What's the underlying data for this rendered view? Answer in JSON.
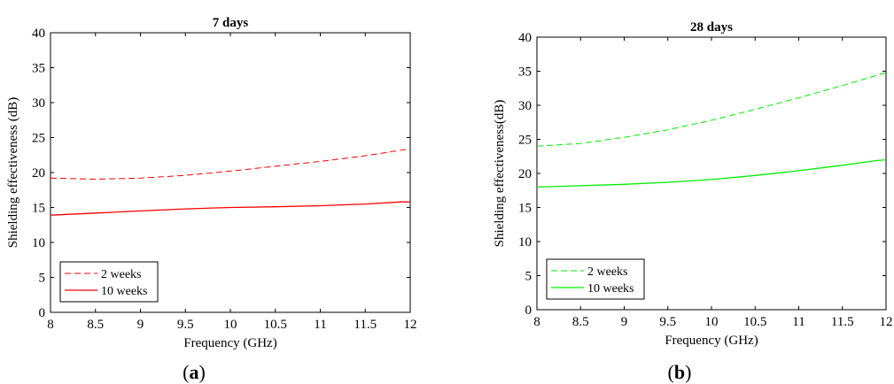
{
  "chart_data": [
    {
      "type": "line",
      "title": "7 days",
      "xlabel": "Frequency (GHz)",
      "ylabel": "Shielding effectiveness (dB)",
      "xlim": [
        8,
        12
      ],
      "ylim": [
        0,
        40
      ],
      "xticks": [
        "8",
        "8.5",
        "9",
        "9.5",
        "10",
        "10.5",
        "11",
        "11.5",
        "12"
      ],
      "yticks": [
        "0",
        "5",
        "10",
        "15",
        "20",
        "25",
        "30",
        "35",
        "40"
      ],
      "legend_position": "bottom-left",
      "grid": false,
      "caption_letter": "a",
      "series": [
        {
          "name": "2 weeks",
          "color": "#ff0000",
          "style": "dashed",
          "x": [
            8.0,
            8.5,
            9.0,
            9.5,
            10.0,
            10.5,
            11.0,
            11.5,
            12.0
          ],
          "y": [
            19.2,
            19.05,
            19.2,
            19.6,
            20.2,
            20.9,
            21.6,
            22.4,
            23.4
          ]
        },
        {
          "name": "10 weeks",
          "color": "#ff0000",
          "style": "solid",
          "x": [
            8.0,
            8.5,
            9.0,
            9.5,
            10.0,
            10.5,
            11.0,
            11.5,
            11.9,
            12.0
          ],
          "y": [
            13.9,
            14.2,
            14.5,
            14.8,
            15.0,
            15.1,
            15.25,
            15.5,
            15.8,
            15.8
          ]
        }
      ]
    },
    {
      "type": "line",
      "title": "28 days",
      "xlabel": "Frequency (GHz)",
      "ylabel": "Shielding effectiveness(dB)",
      "xlim": [
        8,
        12
      ],
      "ylim": [
        0,
        40
      ],
      "xticks": [
        "8",
        "8.5",
        "9",
        "9.5",
        "10",
        "10.5",
        "11",
        "11.5",
        "12"
      ],
      "yticks": [
        "0",
        "5",
        "10",
        "15",
        "20",
        "25",
        "30",
        "35",
        "40"
      ],
      "legend_position": "bottom-left",
      "grid": false,
      "caption_letter": "b",
      "series": [
        {
          "name": "2 weeks",
          "color": "#00ee00",
          "style": "dashed",
          "x": [
            8.0,
            8.5,
            9.0,
            9.5,
            10.0,
            10.5,
            11.0,
            11.5,
            12.0
          ],
          "y": [
            24.0,
            24.4,
            25.3,
            26.4,
            27.8,
            29.4,
            31.1,
            32.9,
            34.8
          ]
        },
        {
          "name": "10 weeks",
          "color": "#00ee00",
          "style": "solid",
          "x": [
            8.0,
            8.5,
            9.0,
            9.5,
            10.0,
            10.5,
            11.0,
            11.5,
            11.9,
            12.0
          ],
          "y": [
            18.0,
            18.2,
            18.4,
            18.7,
            19.1,
            19.7,
            20.4,
            21.2,
            21.9,
            22.0
          ]
        }
      ]
    }
  ]
}
